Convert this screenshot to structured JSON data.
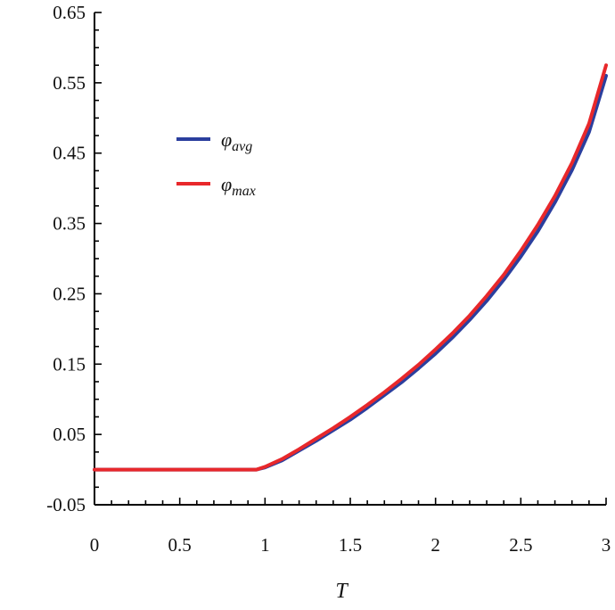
{
  "chart_data": {
    "type": "line",
    "xlabel": "T",
    "ylabel": "",
    "xlim": [
      0,
      3
    ],
    "ylim": [
      -0.05,
      0.65
    ],
    "x_ticks": [
      0,
      0.5,
      1,
      1.5,
      2,
      2.5,
      3
    ],
    "x_tick_labels": [
      "0",
      "0.5",
      "1",
      "1.5",
      "2",
      "2.5",
      "3"
    ],
    "y_ticks": [
      -0.05,
      0.05,
      0.15,
      0.25,
      0.35,
      0.45,
      0.55,
      0.65
    ],
    "y_tick_labels": [
      "-0.05",
      "0.05",
      "0.15",
      "0.25",
      "0.35",
      "0.45",
      "0.55",
      "0.65"
    ],
    "grid": false,
    "legend_position": "upper-left",
    "series": [
      {
        "name": "φavg",
        "symbol": "φ",
        "subscript": "avg",
        "color": "#2b3f9e",
        "x": [
          0,
          0.95,
          1.0,
          1.1,
          1.2,
          1.3,
          1.4,
          1.5,
          1.6,
          1.7,
          1.8,
          1.9,
          2.0,
          2.1,
          2.2,
          2.3,
          2.4,
          2.5,
          2.6,
          2.7,
          2.8,
          2.9,
          3.0
        ],
        "y": [
          0.0,
          0.0,
          0.003,
          0.013,
          0.027,
          0.041,
          0.056,
          0.071,
          0.088,
          0.106,
          0.124,
          0.144,
          0.165,
          0.188,
          0.213,
          0.24,
          0.27,
          0.303,
          0.339,
          0.38,
          0.426,
          0.48,
          0.56
        ]
      },
      {
        "name": "φmax",
        "symbol": "φ",
        "subscript": "max",
        "color": "#e8282b",
        "x": [
          0,
          0.95,
          1.0,
          1.1,
          1.2,
          1.3,
          1.4,
          1.5,
          1.6,
          1.7,
          1.8,
          1.9,
          2.0,
          2.1,
          2.2,
          2.3,
          2.4,
          2.5,
          2.6,
          2.7,
          2.8,
          2.9,
          3.0
        ],
        "y": [
          0.0,
          0.0,
          0.004,
          0.015,
          0.029,
          0.044,
          0.059,
          0.075,
          0.092,
          0.11,
          0.129,
          0.149,
          0.171,
          0.194,
          0.219,
          0.247,
          0.277,
          0.311,
          0.348,
          0.389,
          0.436,
          0.492,
          0.575
        ]
      }
    ]
  }
}
